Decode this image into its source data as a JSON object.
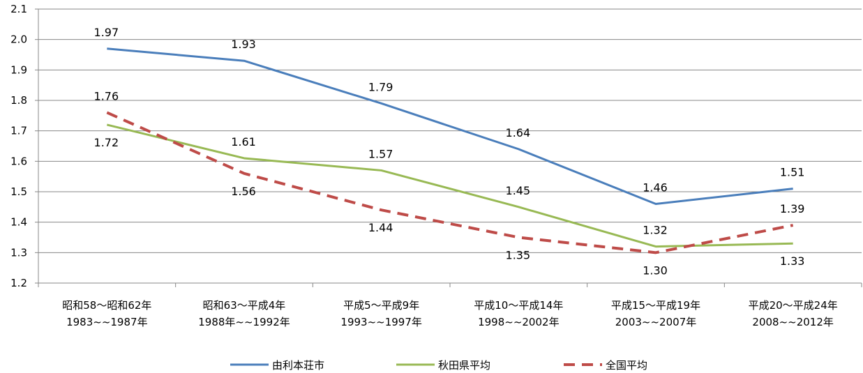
{
  "chart_data": {
    "type": "line",
    "categories": [
      [
        "昭和58～昭和62年",
        "1983~~1987年"
      ],
      [
        "昭和63～平成4年",
        "1988年~~1992年"
      ],
      [
        "平成5～平成9年",
        "1993~~1997年"
      ],
      [
        "平成10～平成14年",
        "1998~~2002年"
      ],
      [
        "平成15～平成19年",
        "2003~~2007年"
      ],
      [
        "平成20～平成24年",
        "2008~~2012年"
      ]
    ],
    "series": [
      {
        "name": "由利本荘市",
        "values": [
          1.97,
          1.93,
          1.79,
          1.64,
          1.46,
          1.51
        ],
        "labels": [
          "1.97",
          "1.93",
          "1.79",
          "1.64",
          "1.46",
          "1.51"
        ],
        "color": "#4a7ebb",
        "dash": false,
        "label_pos": "above"
      },
      {
        "name": "秋田県平均",
        "values": [
          1.72,
          1.61,
          1.57,
          1.45,
          1.32,
          1.33
        ],
        "labels": [
          "1.72",
          "1.61",
          "1.57",
          "1.45",
          "1.32",
          "1.33"
        ],
        "color": "#98b954",
        "dash": false,
        "label_pos": [
          "below",
          "above",
          "above",
          "above",
          "above",
          "below"
        ]
      },
      {
        "name": "全国平均",
        "values": [
          1.76,
          1.56,
          1.44,
          1.35,
          1.3,
          1.39
        ],
        "labels": [
          "1.76",
          "1.56",
          "1.44",
          "1.35",
          "1.30",
          "1.39"
        ],
        "color": "#be4b48",
        "dash": true,
        "label_pos": [
          "above",
          "below",
          "below",
          "below",
          "below",
          "above"
        ]
      }
    ],
    "yticks": [
      "1.2",
      "1.3",
      "1.4",
      "1.5",
      "1.6",
      "1.7",
      "1.8",
      "1.9",
      "2.0",
      "2.1"
    ],
    "ylim": [
      1.2,
      2.1
    ],
    "grid": true,
    "legend": "bottom"
  }
}
